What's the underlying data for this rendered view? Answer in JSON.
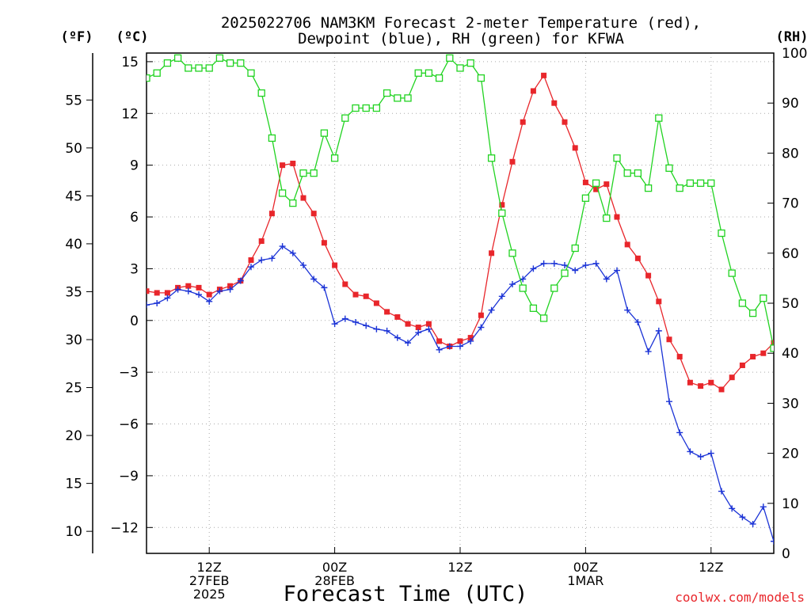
{
  "title": {
    "line1": "2025022706 NAM3KM Forecast 2-meter Temperature (red),",
    "line2": "Dewpoint (blue), RH (green) for KFWA"
  },
  "units": {
    "fahrenheit": "(ºF)",
    "celsius": "(ºC)",
    "rh": "(RH)"
  },
  "x_axis": {
    "label": "Forecast Time (UTC)",
    "ticks": [
      {
        "h": 6,
        "lines": [
          "12Z",
          "27FEB",
          "2025"
        ]
      },
      {
        "h": 18,
        "lines": [
          "00Z",
          "28FEB"
        ]
      },
      {
        "h": 30,
        "lines": [
          "12Z"
        ]
      },
      {
        "h": 42,
        "lines": [
          "00Z",
          "1MAR"
        ]
      },
      {
        "h": 54,
        "lines": [
          "12Z"
        ]
      }
    ]
  },
  "credit": "coolwx.com/models",
  "colors": {
    "temperature": "#e8262b",
    "dewpoint": "#1b33d6",
    "rh": "#21d321",
    "credit": "#e8262b",
    "grid": "#aaaaaa"
  },
  "chart_data": {
    "type": "line",
    "x_unit": "hours after 2025-02-27 06Z",
    "x": [
      0,
      1,
      2,
      3,
      4,
      5,
      6,
      7,
      8,
      9,
      10,
      11,
      12,
      13,
      14,
      15,
      16,
      17,
      18,
      19,
      20,
      21,
      22,
      23,
      24,
      25,
      26,
      27,
      28,
      29,
      30,
      31,
      32,
      33,
      34,
      35,
      36,
      37,
      38,
      39,
      40,
      41,
      42,
      43,
      44,
      45,
      46,
      47,
      48,
      49,
      50,
      51,
      52,
      53,
      54,
      55,
      56,
      57,
      58,
      59,
      60
    ],
    "xlim": [
      0,
      60
    ],
    "celsius_axis": {
      "range": [
        -13.5,
        15.5
      ],
      "ticks": [
        15,
        12,
        9,
        6,
        3,
        0,
        -3,
        -6,
        -9,
        -12
      ]
    },
    "fahrenheit_axis": {
      "ticks": [
        55,
        50,
        45,
        40,
        35,
        30,
        25,
        20,
        15,
        10
      ]
    },
    "rh_axis": {
      "range": [
        0,
        100
      ],
      "ticks": [
        100,
        90,
        80,
        70,
        60,
        50,
        40,
        30,
        20,
        10,
        0
      ]
    },
    "series": [
      {
        "name": "Temperature",
        "axis": "celsius",
        "marker": "filled-square",
        "values": [
          1.7,
          1.6,
          1.6,
          1.9,
          2.0,
          1.9,
          1.5,
          1.8,
          2.0,
          2.3,
          3.5,
          4.6,
          6.2,
          9.0,
          9.1,
          7.1,
          6.2,
          4.5,
          3.2,
          2.1,
          1.5,
          1.4,
          1.0,
          0.5,
          0.2,
          -0.2,
          -0.4,
          -0.2,
          -1.2,
          -1.5,
          -1.2,
          -1.0,
          0.3,
          3.9,
          6.7,
          9.2,
          11.5,
          13.3,
          14.2,
          12.6,
          11.5,
          10.0,
          8.0,
          7.6,
          7.9,
          6.0,
          4.4,
          3.6,
          2.6,
          1.1,
          -1.1,
          -2.1,
          -3.6,
          -3.8,
          -3.6,
          -4.0,
          -3.3,
          -2.6,
          -2.1,
          -1.9,
          -1.3
        ]
      },
      {
        "name": "Dewpoint",
        "axis": "celsius",
        "marker": "plus",
        "values": [
          0.9,
          1.0,
          1.3,
          1.8,
          1.7,
          1.5,
          1.1,
          1.7,
          1.8,
          2.3,
          3.1,
          3.5,
          3.6,
          4.3,
          3.9,
          3.2,
          2.4,
          1.9,
          -0.2,
          0.1,
          -0.1,
          -0.3,
          -0.5,
          -0.6,
          -1.0,
          -1.3,
          -0.7,
          -0.5,
          -1.7,
          -1.5,
          -1.5,
          -1.2,
          -0.4,
          0.6,
          1.4,
          2.1,
          2.4,
          3.0,
          3.3,
          3.3,
          3.2,
          2.9,
          3.2,
          3.3,
          2.4,
          2.9,
          0.6,
          -0.1,
          -1.8,
          -0.6,
          -4.7,
          -6.5,
          -7.6,
          -7.9,
          -7.7,
          -9.9,
          -10.9,
          -11.4,
          -11.8,
          -10.8,
          -12.8
        ]
      },
      {
        "name": "RH",
        "axis": "rh",
        "marker": "open-square",
        "values": [
          95,
          96,
          98,
          99,
          97,
          97,
          97,
          99,
          98,
          98,
          96,
          92,
          83,
          72,
          70,
          76,
          76,
          84,
          79,
          87,
          89,
          89,
          89,
          92,
          91,
          91,
          96,
          96,
          95,
          99,
          97,
          98,
          95,
          79,
          68,
          60,
          53,
          49,
          47,
          53,
          56,
          61,
          71,
          74,
          67,
          79,
          76,
          76,
          73,
          87,
          77,
          73,
          74,
          74,
          74,
          64,
          56,
          50,
          48,
          51,
          41
        ]
      }
    ]
  }
}
